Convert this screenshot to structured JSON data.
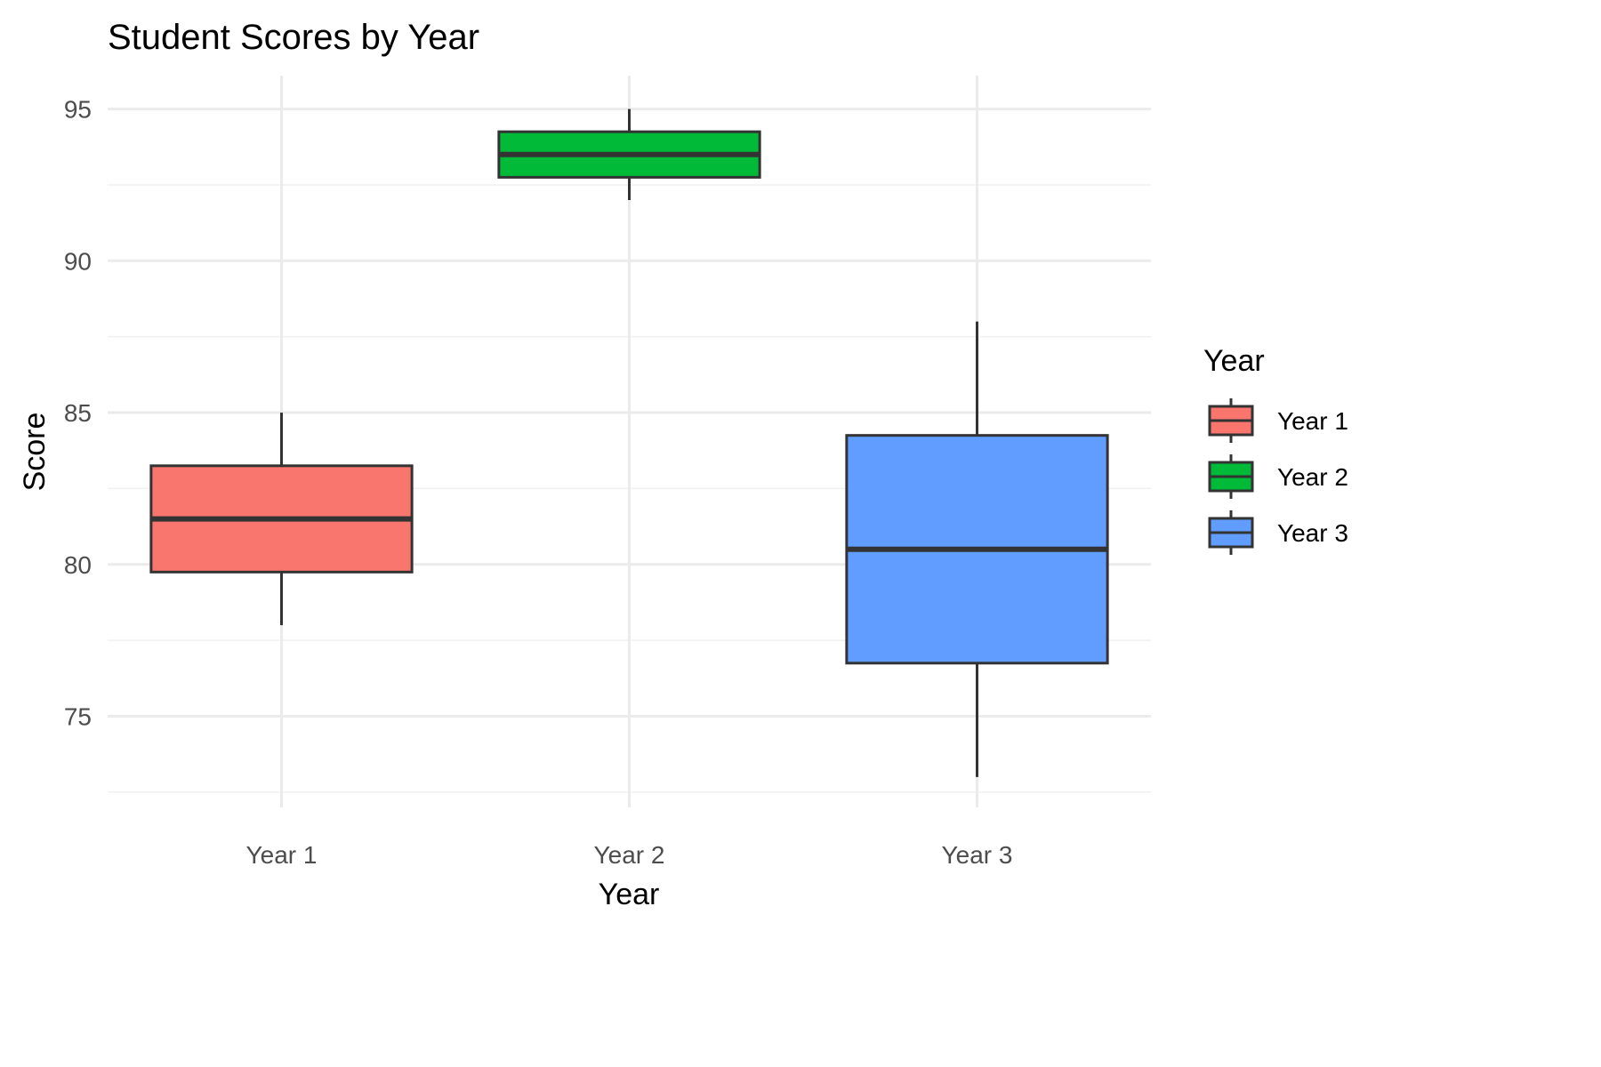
{
  "chart_data": {
    "type": "box",
    "title": "Student Scores by Year",
    "xlabel": "Year",
    "ylabel": "Score",
    "categories": [
      "Year 1",
      "Year 2",
      "Year 3"
    ],
    "ylim": [
      72,
      96.1
    ],
    "yticks": [
      75,
      80,
      85,
      90,
      95
    ],
    "grid": true,
    "legend": {
      "title": "Year",
      "position": "right",
      "entries": [
        "Year 1",
        "Year 2",
        "Year 3"
      ]
    },
    "series": [
      {
        "name": "Year 1",
        "color": "#F8766D",
        "min": 78,
        "q1": 79.75,
        "median": 81.5,
        "q3": 83.25,
        "max": 85
      },
      {
        "name": "Year 2",
        "color": "#00BA38",
        "min": 92,
        "q1": 92.75,
        "median": 93.5,
        "q3": 94.25,
        "max": 95
      },
      {
        "name": "Year 3",
        "color": "#619CFF",
        "min": 73,
        "q1": 76.75,
        "median": 80.5,
        "q3": 84.25,
        "max": 88
      }
    ]
  }
}
